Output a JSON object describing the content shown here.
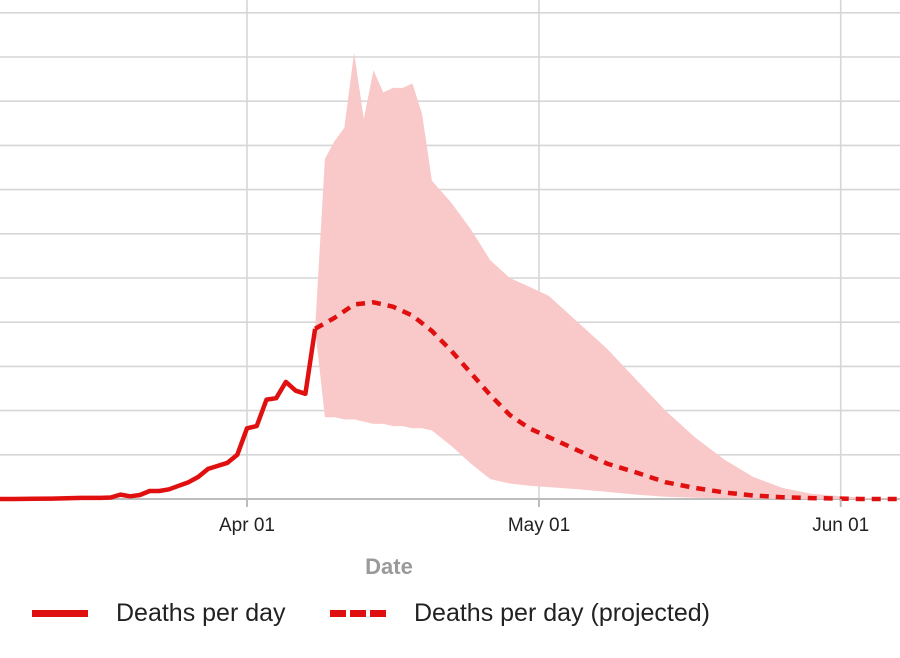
{
  "chart_data": {
    "type": "line",
    "xlabel": "Date",
    "ylabel": "",
    "x_tick_labels": [
      "Apr 01",
      "May 01",
      "Jun 01"
    ],
    "grid": true,
    "legend_placement": "bottom",
    "colors": {
      "line": "#e01010",
      "band": "#f9c9c9",
      "grid": "#d6d6d6"
    },
    "series": [
      {
        "name": "Deaths per day",
        "style": "solid",
        "x": [
          "Mar 06",
          "Mar 08",
          "Mar 10",
          "Mar 12",
          "Mar 14",
          "Mar 15",
          "Mar 16",
          "Mar 17",
          "Mar 18",
          "Mar 19",
          "Mar 20",
          "Mar 21",
          "Mar 22",
          "Mar 23",
          "Mar 24",
          "Mar 25",
          "Mar 26",
          "Mar 27",
          "Mar 28",
          "Mar 29",
          "Mar 30",
          "Mar 31",
          "Apr 01",
          "Apr 02",
          "Apr 03",
          "Apr 04",
          "Apr 05",
          "Apr 06",
          "Apr 07",
          "Apr 08"
        ],
        "values": [
          0,
          0,
          0.05,
          0.1,
          0.2,
          0.25,
          0.25,
          0.25,
          0.35,
          1,
          0.6,
          0.9,
          1.8,
          1.8,
          2.2,
          3,
          3.8,
          5,
          6.8,
          7.5,
          8.2,
          10,
          16,
          16.5,
          22.5,
          22.8,
          26.5,
          24.5,
          23.8,
          38.5
        ]
      },
      {
        "name": "Deaths per day (projected)",
        "style": "dashed",
        "x": [
          "Apr 08",
          "Apr 10",
          "Apr 12",
          "Apr 14",
          "Apr 16",
          "Apr 18",
          "Apr 20",
          "Apr 22",
          "Apr 24",
          "Apr 26",
          "Apr 28",
          "Apr 30",
          "May 02",
          "May 05",
          "May 08",
          "May 11",
          "May 14",
          "May 17",
          "May 20",
          "May 23",
          "May 26",
          "May 29",
          "Jun 01",
          "Jun 03",
          "Jun 07"
        ],
        "values": [
          38.5,
          41,
          44,
          44.5,
          43.5,
          41.5,
          38,
          33.5,
          28.5,
          23.5,
          19,
          16,
          14,
          11,
          8,
          6,
          3.8,
          2.5,
          1.5,
          0.8,
          0.4,
          0.2,
          0.1,
          0,
          0
        ]
      },
      {
        "name": "",
        "style": "band",
        "x": [
          "Apr 08",
          "Apr 09",
          "Apr 10",
          "Apr 11",
          "Apr 12",
          "Apr 13",
          "Apr 14",
          "Apr 15",
          "Apr 16",
          "Apr 17",
          "Apr 18",
          "Apr 19",
          "Apr 20",
          "Apr 22",
          "Apr 24",
          "Apr 26",
          "Apr 28",
          "Apr 30",
          "May 02",
          "May 05",
          "May 08",
          "May 11",
          "May 14",
          "May 17",
          "May 20",
          "May 23",
          "May 26",
          "May 29",
          "Jun 01",
          "Jun 04",
          "Jun 07"
        ],
        "upper": [
          38.5,
          77,
          81,
          84,
          101,
          86,
          97,
          92,
          93,
          93,
          94,
          87,
          72,
          67,
          61,
          54,
          50,
          48,
          46,
          40,
          34,
          27,
          20,
          14,
          9,
          5,
          2.5,
          1.2,
          0.6,
          0.2,
          0
        ],
        "lower": [
          38.5,
          18.5,
          18.5,
          18,
          18,
          17.5,
          17,
          17,
          16.5,
          16.5,
          16,
          16,
          15.5,
          12,
          8,
          4.5,
          3.5,
          3,
          2.7,
          2.2,
          1.6,
          1,
          0.5,
          0.3,
          0.2,
          0.1,
          0.05,
          0,
          0,
          0,
          0
        ]
      }
    ]
  }
}
